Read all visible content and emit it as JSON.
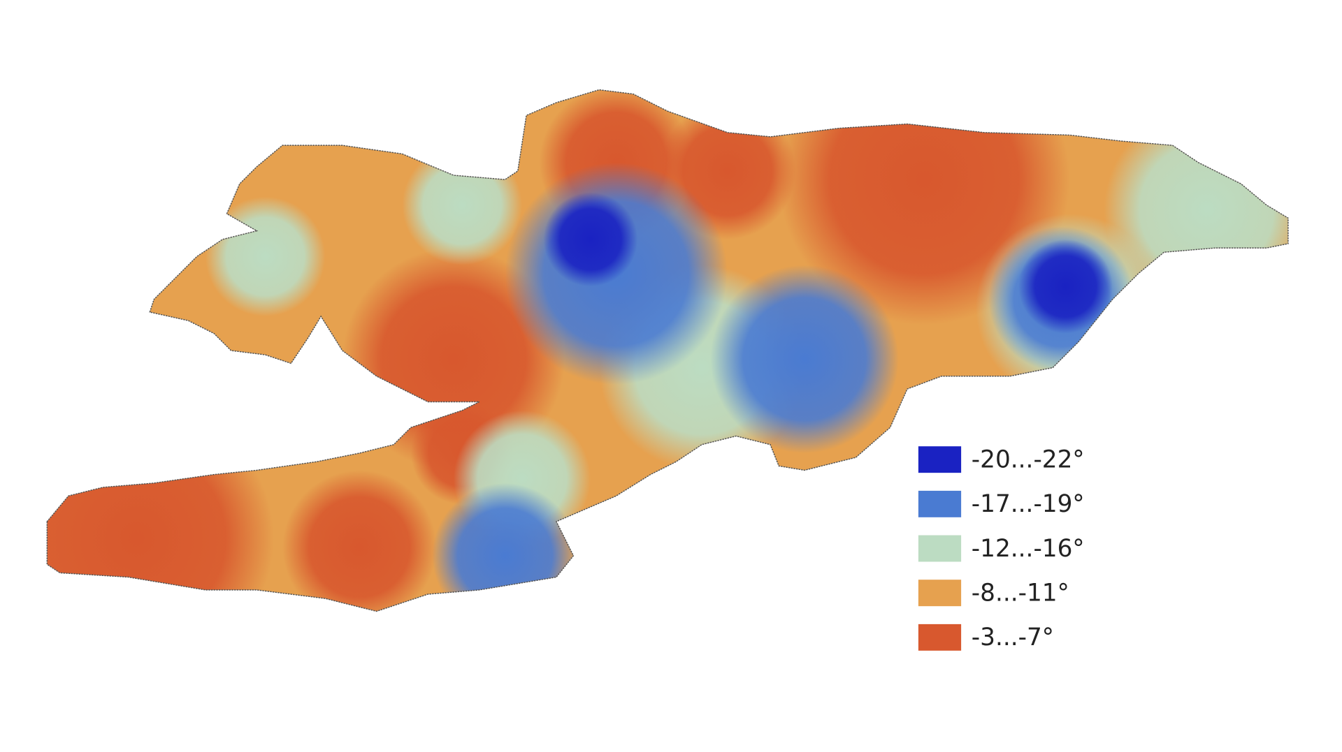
{
  "legend": {
    "items": [
      {
        "label": "-20...-22°",
        "color": "#1a22c2"
      },
      {
        "label": "-17...-19°",
        "color": "#4a7bd2"
      },
      {
        "label": "-12...-16°",
        "color": "#bcdcc2"
      },
      {
        "label": "-8...-11°",
        "color": "#e6a14f"
      },
      {
        "label": "-3...-7°",
        "color": "#d8582e"
      }
    ]
  }
}
